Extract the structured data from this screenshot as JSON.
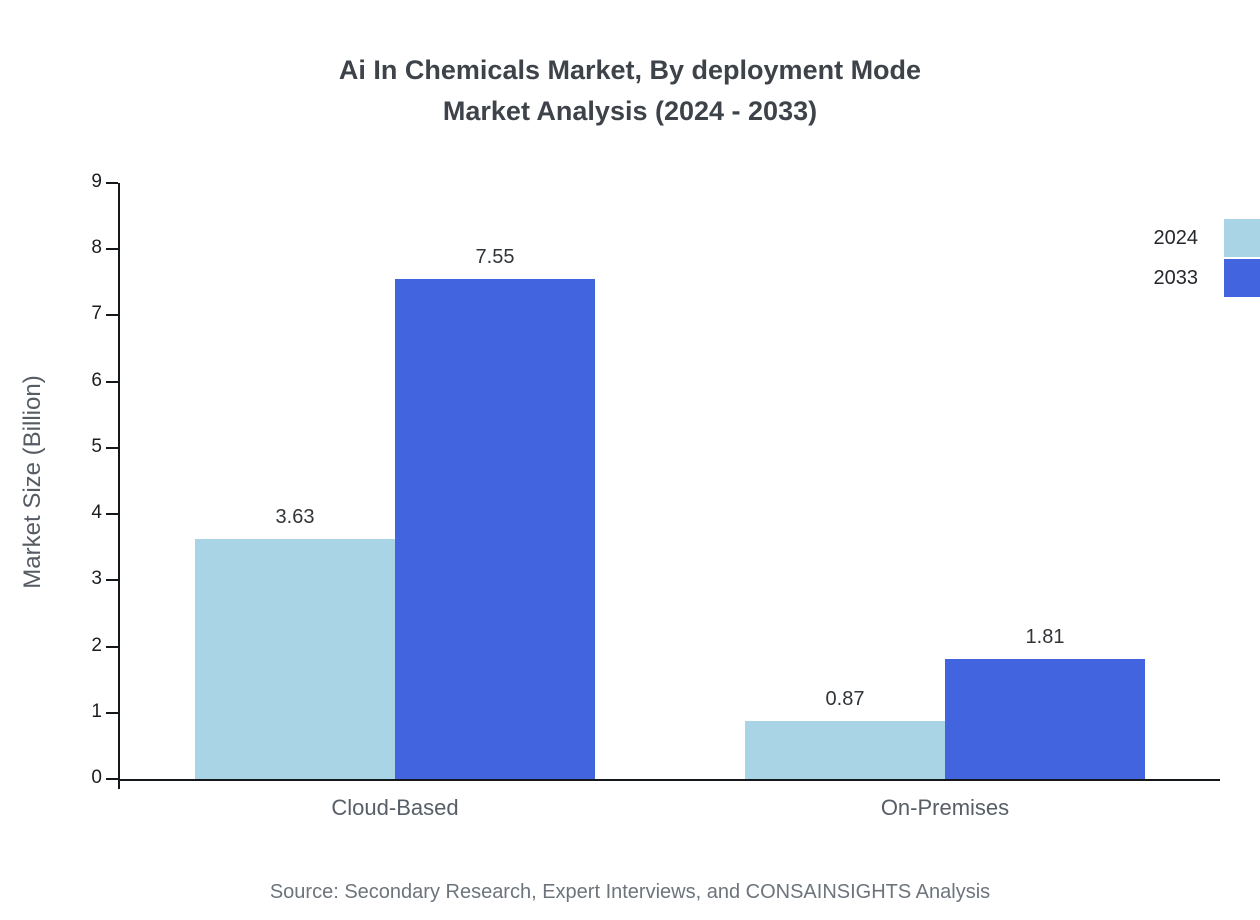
{
  "chart": {
    "title_line1": "Ai In Chemicals Market, By deployment Mode",
    "title_line2": "Market Analysis (2024 - 2033)",
    "ylabel": "Market Size (Billion)",
    "source": "Source: Secondary Research, Expert Interviews, and CONSAINSIGHTS Analysis"
  },
  "chart_data": {
    "type": "bar",
    "title": "Ai In Chemicals Market, By deployment Mode Market Analysis (2024 - 2033)",
    "categories": [
      "Cloud-Based",
      "On-Premises"
    ],
    "series": [
      {
        "name": "2024",
        "color": "#a8d4e6",
        "values": [
          3.63,
          0.87
        ]
      },
      {
        "name": "2033",
        "color": "#4265df",
        "values": [
          7.55,
          1.81
        ]
      }
    ],
    "xlabel": "",
    "ylabel": "Market Size (Billion)",
    "ylim": [
      0,
      9
    ],
    "y_ticks": [
      0,
      1,
      2,
      3,
      4,
      5,
      6,
      7,
      8,
      9
    ],
    "grid": false,
    "legend_position": "top-right"
  }
}
